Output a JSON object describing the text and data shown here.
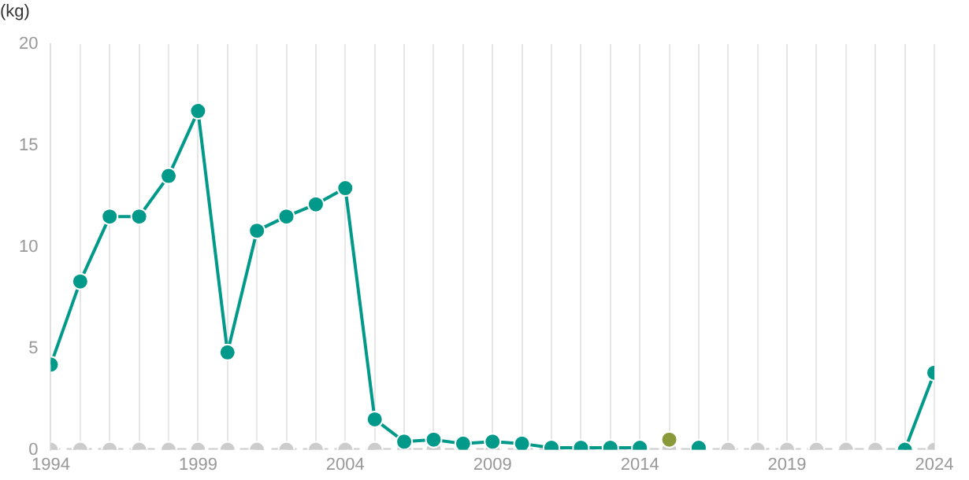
{
  "chart_data": {
    "type": "line",
    "ylabel": "(kg)",
    "x": [
      1994,
      1995,
      1996,
      1997,
      1998,
      1999,
      2000,
      2001,
      2002,
      2003,
      2004,
      2005,
      2006,
      2007,
      2008,
      2009,
      2010,
      2011,
      2012,
      2013,
      2014,
      2015,
      2016,
      2017,
      2018,
      2019,
      2020,
      2021,
      2022,
      2023,
      2024
    ],
    "series": [
      {
        "color": "#cccccc",
        "line_style": "dashed",
        "values": [
          0,
          0,
          0,
          0,
          0,
          0,
          0,
          0,
          0,
          0,
          0,
          0,
          0,
          0,
          0,
          0,
          0,
          0,
          0,
          0,
          0,
          0,
          0,
          0,
          0,
          0,
          0,
          0,
          0,
          0,
          0
        ]
      },
      {
        "color": "#00998a",
        "line_style": "solid",
        "values": [
          4.2,
          8.3,
          11.5,
          11.5,
          13.5,
          16.7,
          4.8,
          10.8,
          11.5,
          12.1,
          12.9,
          1.5,
          0.4,
          0.5,
          0.3,
          0.4,
          0.3,
          0.1,
          0.1,
          0.1,
          0.1,
          null,
          0.1,
          null,
          null,
          null,
          null,
          null,
          null,
          0,
          3.8
        ]
      },
      {
        "color": "#8a9a3a",
        "type": "scatter",
        "x": [
          2015
        ],
        "values": [
          0.5
        ]
      }
    ],
    "xlim": [
      1994,
      2024
    ],
    "xticks": [
      1994,
      {
        "value": 1995,
        "label": null
      },
      {
        "value": 1996,
        "label": null
      },
      {
        "value": 1997,
        "label": null
      },
      {
        "value": 1998,
        "label": null
      },
      1999,
      {
        "value": 2000,
        "label": null
      },
      {
        "value": 2001,
        "label": null
      },
      {
        "value": 2002,
        "label": null
      },
      {
        "value": 2003,
        "label": null
      },
      2004,
      {
        "value": 2005,
        "label": null
      },
      {
        "value": 2006,
        "label": null
      },
      {
        "value": 2007,
        "label": null
      },
      {
        "value": 2008,
        "label": null
      },
      2009,
      {
        "value": 2010,
        "label": null
      },
      {
        "value": 2011,
        "label": null
      },
      {
        "value": 2012,
        "label": null
      },
      {
        "value": 2013,
        "label": null
      },
      2014,
      {
        "value": 2015,
        "label": null
      },
      {
        "value": 2016,
        "label": null
      },
      {
        "value": 2017,
        "label": null
      },
      {
        "value": 2018,
        "label": null
      },
      2019,
      {
        "value": 2020,
        "label": null
      },
      {
        "value": 2021,
        "label": null
      },
      {
        "value": 2022,
        "label": null
      },
      {
        "value": 2023,
        "label": null
      },
      2024
    ],
    "ylim": [
      0,
      20
    ],
    "yticks": [
      0,
      5,
      10,
      15,
      20
    ],
    "grid": "x",
    "marker": "circle",
    "legend": false
  }
}
